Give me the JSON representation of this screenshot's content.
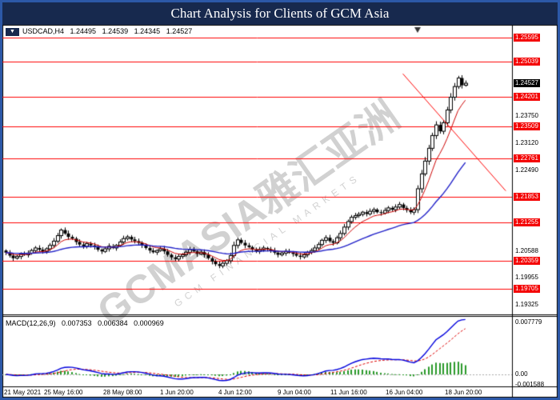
{
  "banner": {
    "title": "Chart Analysis for Clients of GCM Asia"
  },
  "chart_header": {
    "symbol": "USDCAD,H4",
    "open": "1.24495",
    "high": "1.24539",
    "low": "1.24345",
    "close": "1.24527"
  },
  "macd_header": {
    "label": "MACD(12,26,9)",
    "macd_value": "0.007353",
    "signal_value": "0.006384",
    "histogram_value": "0.000969"
  },
  "watermark": {
    "line1": "GCMASIA雅汇亚洲",
    "line2": "GCM FINANCIAL MARKETS"
  },
  "widget": {
    "arrow": "▼"
  },
  "colors": {
    "frame_blue": "#2c58a7",
    "banner_navy": "#17294e",
    "level_red": "#ff0000",
    "current_black": "#000000",
    "candle_up_fill": "#ffffff",
    "candle_down_fill": "#000000",
    "ma_fast": "#cc0000",
    "ma_slow": "#2020c8",
    "macd_line": "#0000dd",
    "macd_signal": "#dd0000",
    "macd_hist": "#2a9a2a"
  },
  "chart_data": {
    "type": "candlestick",
    "title": "Chart Analysis for Clients of GCM Asia",
    "symbol": "USDCAD",
    "timeframe": "H4",
    "y_range": {
      "top": 1.259,
      "bottom": 1.191
    },
    "open_first": 1.206,
    "closes": [
      1.2055,
      1.2048,
      1.2042,
      1.2046,
      1.2052,
      1.205,
      1.2054,
      1.206,
      1.2066,
      1.2062,
      1.2058,
      1.2064,
      1.2072,
      1.2082,
      1.2095,
      1.2108,
      1.21,
      1.2092,
      1.2088,
      1.208,
      1.2074,
      1.207,
      1.2076,
      1.2072,
      1.2068,
      1.2062,
      1.2058,
      1.2064,
      1.207,
      1.2066,
      1.2072,
      1.208,
      1.2088,
      1.2092,
      1.2086,
      1.2082,
      1.2078,
      1.2072,
      1.2066,
      1.206,
      1.2056,
      1.206,
      1.2064,
      1.2058,
      1.205,
      1.2044,
      1.204,
      1.2046,
      1.205,
      1.2056,
      1.2062,
      1.2058,
      1.2052,
      1.2056,
      1.205,
      1.2042,
      1.2034,
      1.2028,
      1.2024,
      1.203,
      1.2036,
      1.2048,
      1.2072,
      1.2085,
      1.2078,
      1.2072,
      1.2068,
      1.2062,
      1.2058,
      1.2062,
      1.2066,
      1.2063,
      1.206,
      1.2055,
      1.205,
      1.2054,
      1.2058,
      1.2055,
      1.2052,
      1.2048,
      1.2045,
      1.205,
      1.2056,
      1.206,
      1.2066,
      1.2074,
      1.2084,
      1.209,
      1.2082,
      1.2078,
      1.209,
      1.21,
      1.2115,
      1.2128,
      1.2138,
      1.2142,
      1.2145,
      1.215,
      1.2146,
      1.2152,
      1.2156,
      1.215,
      1.2148,
      1.2154,
      1.216,
      1.2156,
      1.2162,
      1.2168,
      1.216,
      1.2155,
      1.215,
      1.2156,
      1.2205,
      1.224,
      1.227,
      1.23,
      1.233,
      1.2355,
      1.234,
      1.236,
      1.239,
      1.242,
      1.2445,
      1.2465,
      1.2448,
      1.24527
    ],
    "x_axis_labels": [
      {
        "index": 0,
        "label": "21 May 2021"
      },
      {
        "index": 16,
        "label": "25 May 16:00"
      },
      {
        "index": 32,
        "label": "28 May 08:00"
      },
      {
        "index": 47,
        "label": "1 Jun 20:00"
      },
      {
        "index": 63,
        "label": "4 Jun 12:00"
      },
      {
        "index": 79,
        "label": "9 Jun 04:00"
      },
      {
        "index": 94,
        "label": "11 Jun 16:00"
      },
      {
        "index": 109,
        "label": "16 Jun 04:00"
      },
      {
        "index": 125,
        "label": "18 Jun 20:00"
      }
    ],
    "price_axis": [
      {
        "label": "1.25595",
        "value": 1.25595,
        "style": "level"
      },
      {
        "label": "1.25039",
        "value": 1.25039,
        "style": "level"
      },
      {
        "label": "1.24527",
        "value": 1.24527,
        "style": "current"
      },
      {
        "label": "1.24201",
        "value": 1.24201,
        "style": "level"
      },
      {
        "label": "1.23750",
        "value": 1.2375,
        "style": "tick"
      },
      {
        "label": "1.23509",
        "value": 1.23509,
        "style": "level"
      },
      {
        "label": "1.23120",
        "value": 1.2312,
        "style": "tick"
      },
      {
        "label": "1.22761",
        "value": 1.22761,
        "style": "level"
      },
      {
        "label": "1.22490",
        "value": 1.2249,
        "style": "tick"
      },
      {
        "label": "1.21853",
        "value": 1.21853,
        "style": "level"
      },
      {
        "label": "1.21255",
        "value": 1.21255,
        "style": "level"
      },
      {
        "label": "1.20588",
        "value": 1.20588,
        "style": "tick"
      },
      {
        "label": "1.20359",
        "value": 1.20359,
        "style": "level"
      },
      {
        "label": "1.19955",
        "value": 1.19955,
        "style": "tick"
      },
      {
        "label": "1.19705",
        "value": 1.19705,
        "style": "level"
      },
      {
        "label": "1.19325",
        "value": 1.19325,
        "style": "tick"
      }
    ],
    "horizontal_lines": [
      1.25595,
      1.25039,
      1.24201,
      1.23509,
      1.22761,
      1.21853,
      1.21255,
      1.20359,
      1.19705
    ],
    "trendline": {
      "from_index": 108,
      "from_price": 1.2475,
      "to_index": 136,
      "to_price": 1.22
    },
    "shift_marker_index": 112,
    "ma_fast": {
      "period": 8
    },
    "ma_slow": {
      "period": 34
    },
    "macd": {
      "fast": 12,
      "slow": 26,
      "signal": 9,
      "axis_labels": [
        {
          "label": "0.007779",
          "value": 0.007779
        },
        {
          "label": "0.00",
          "value": 0
        },
        {
          "label": "-0.001588",
          "value": -0.001588
        }
      ]
    }
  }
}
